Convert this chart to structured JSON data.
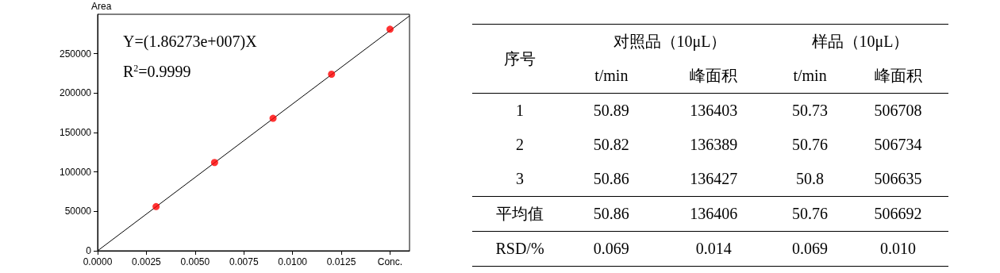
{
  "chart_data": [
    {
      "type": "scatter",
      "ylabel": "Area",
      "xlim": [
        0,
        0.016
      ],
      "ylim": [
        0,
        300000
      ],
      "xticks": [
        {
          "value": 0,
          "label": "0.0000"
        },
        {
          "value": 0.0025,
          "label": "0.0025"
        },
        {
          "value": 0.005,
          "label": "0.0050"
        },
        {
          "value": 0.0075,
          "label": "0.0075"
        },
        {
          "value": 0.01,
          "label": "0.0100"
        },
        {
          "value": 0.0125,
          "label": "0.0125"
        },
        {
          "value": 0.015,
          "label": "Conc."
        }
      ],
      "yticks": [
        0,
        50000,
        100000,
        150000,
        200000,
        250000
      ],
      "grid": false,
      "annotations": [
        "Y=(1.86273e+007)X",
        "R$^{2}$=0.9999"
      ],
      "series": [
        {
          "type": "scatter",
          "color": "#ff0000",
          "marker": "circle",
          "x": [
            0.003,
            0.006,
            0.009,
            0.012,
            0.015
          ],
          "values": [
            56000,
            112000,
            168000,
            224000,
            281000
          ]
        },
        {
          "type": "line",
          "color": "#000000",
          "marker": "none",
          "x": [
            0,
            0.016
          ],
          "values": [
            0,
            298000
          ]
        }
      ]
    },
    {
      "type": "other",
      "annotations": [
        "序号",
        "对照品（10μL）",
        "样品（10μL）",
        "t/min",
        "峰面积",
        "t/min",
        "峰面积",
        "1",
        "50.89",
        "136403",
        "50.73",
        "506708",
        "2",
        "50.82",
        "136389",
        "50.76",
        "506734",
        "3",
        "50.86",
        "136427",
        "50.8",
        "506635",
        "平均值",
        "50.86",
        "136406",
        "50.76",
        "506692",
        "RSD/%",
        "0.069",
        "0.014",
        "0.069",
        "0.010"
      ]
    }
  ]
}
